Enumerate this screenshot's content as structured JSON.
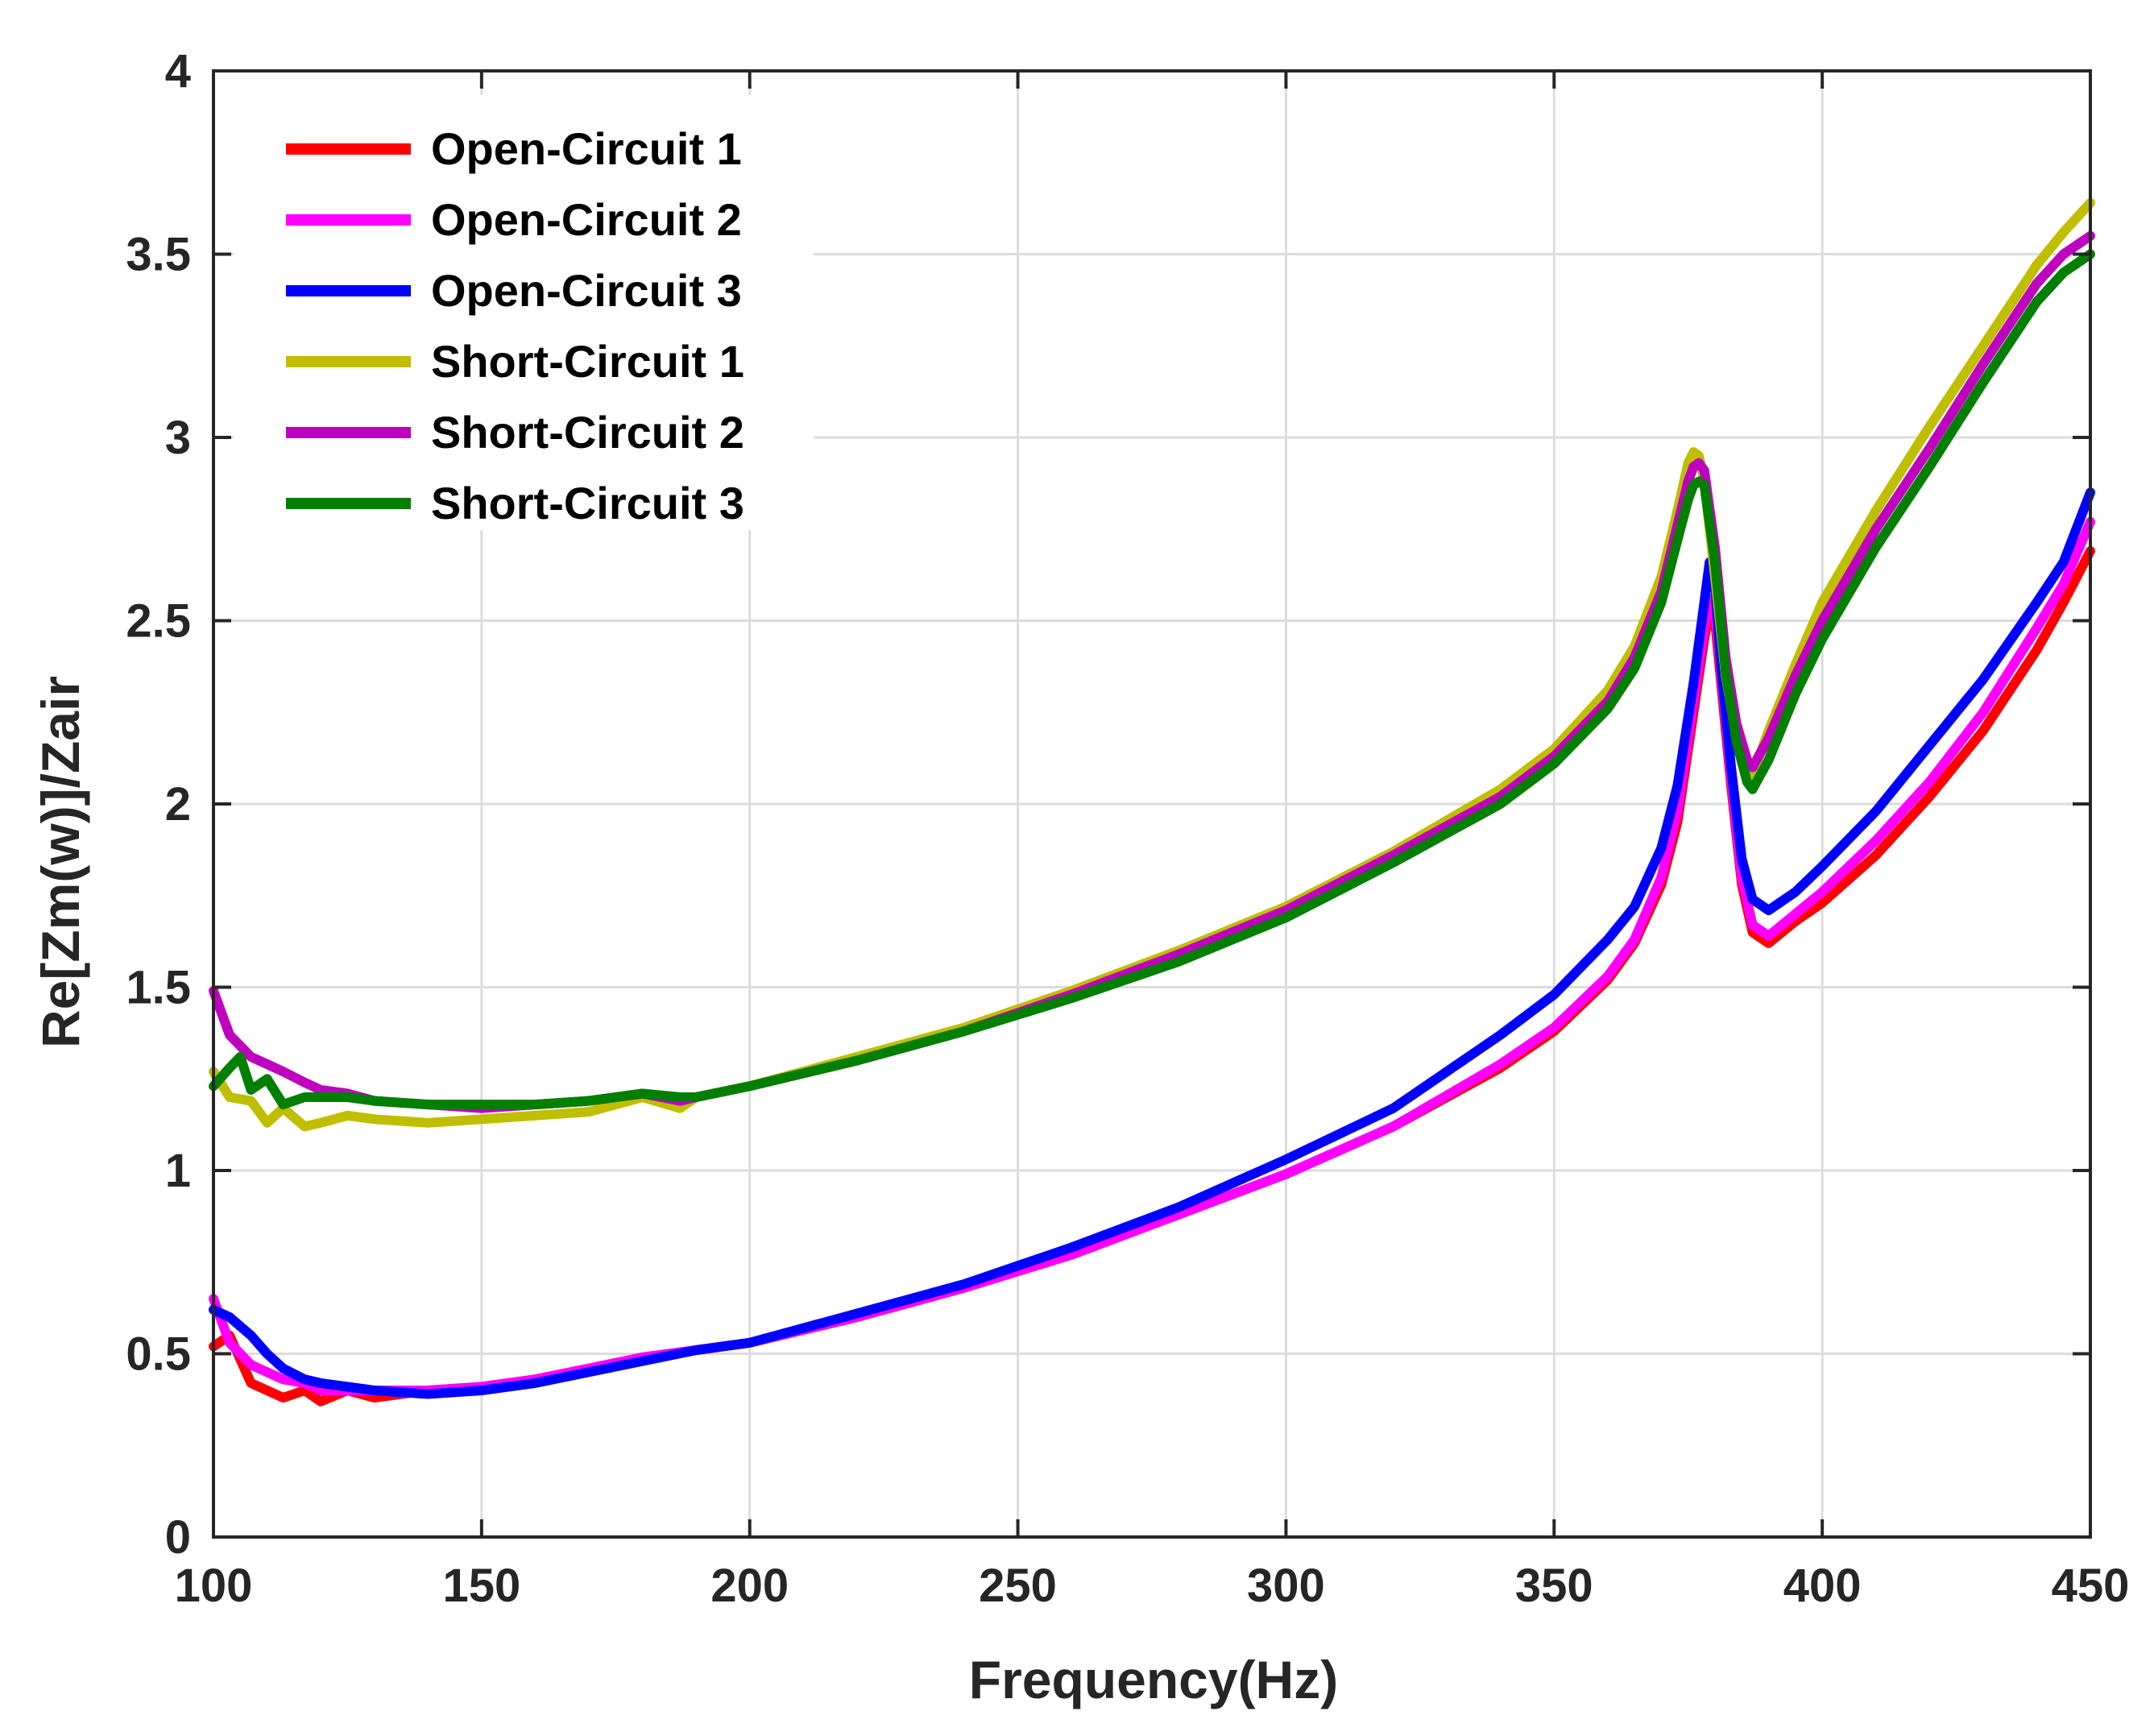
{
  "chart_data": {
    "type": "line",
    "title": "",
    "xlabel": "Frequency(Hz)",
    "ylabel": "Re[Zm(w)]/Zair",
    "xlim": [
      100,
      450
    ],
    "ylim": [
      0,
      4
    ],
    "xticks": [
      100,
      150,
      200,
      250,
      300,
      350,
      400,
      450
    ],
    "xtick_labels": [
      "100",
      "150",
      "200",
      "250",
      "300",
      "350",
      "400",
      "450"
    ],
    "yticks": [
      0,
      0.5,
      1,
      1.5,
      2,
      2.5,
      3,
      3.5,
      4
    ],
    "ytick_labels": [
      "0",
      "0.5",
      "1",
      "1.5",
      "2",
      "2.5",
      "3",
      "3.5",
      "4"
    ],
    "grid": true,
    "legend_position": "top-left",
    "series": [
      {
        "name": "Open-Circuit 1",
        "color": "#ff0000",
        "x": [
          100,
          103,
          107,
          110,
          113,
          117,
          120,
          125,
          130,
          140,
          150,
          160,
          170,
          180,
          190,
          200,
          220,
          240,
          260,
          280,
          300,
          320,
          340,
          350,
          360,
          365,
          370,
          373,
          376,
          378,
          379,
          380,
          381,
          383,
          385,
          387,
          390,
          395,
          400,
          410,
          420,
          430,
          440,
          445,
          450
        ],
        "y": [
          0.52,
          0.55,
          0.42,
          0.4,
          0.38,
          0.4,
          0.37,
          0.4,
          0.38,
          0.4,
          0.41,
          0.43,
          0.46,
          0.49,
          0.51,
          0.53,
          0.6,
          0.68,
          0.78,
          0.88,
          0.99,
          1.12,
          1.28,
          1.38,
          1.52,
          1.62,
          1.78,
          1.95,
          2.25,
          2.45,
          2.53,
          2.5,
          2.35,
          2.05,
          1.78,
          1.65,
          1.62,
          1.68,
          1.73,
          1.86,
          2.02,
          2.2,
          2.42,
          2.55,
          2.69
        ]
      },
      {
        "name": "Open-Circuit 2",
        "color": "#ff00ff",
        "x": [
          100,
          103,
          107,
          110,
          113,
          117,
          120,
          125,
          130,
          140,
          150,
          160,
          170,
          180,
          190,
          200,
          220,
          240,
          260,
          280,
          300,
          320,
          340,
          350,
          360,
          365,
          370,
          373,
          376,
          378,
          379,
          380,
          381,
          383,
          385,
          387,
          390,
          395,
          400,
          410,
          420,
          430,
          440,
          445,
          450
        ],
        "y": [
          0.65,
          0.53,
          0.47,
          0.45,
          0.43,
          0.42,
          0.4,
          0.4,
          0.4,
          0.4,
          0.41,
          0.43,
          0.46,
          0.49,
          0.51,
          0.53,
          0.6,
          0.68,
          0.77,
          0.88,
          0.99,
          1.12,
          1.29,
          1.39,
          1.53,
          1.63,
          1.8,
          1.98,
          2.28,
          2.48,
          2.56,
          2.53,
          2.38,
          2.07,
          1.8,
          1.67,
          1.64,
          1.7,
          1.76,
          1.9,
          2.06,
          2.25,
          2.48,
          2.6,
          2.77
        ]
      },
      {
        "name": "Open-Circuit 3",
        "color": "#0000ff",
        "x": [
          100,
          103,
          107,
          110,
          113,
          117,
          120,
          125,
          130,
          140,
          150,
          160,
          170,
          180,
          190,
          200,
          220,
          240,
          260,
          280,
          300,
          320,
          340,
          350,
          360,
          365,
          370,
          373,
          376,
          378,
          379,
          380,
          381,
          383,
          385,
          387,
          390,
          395,
          400,
          410,
          420,
          430,
          440,
          445,
          450
        ],
        "y": [
          0.62,
          0.6,
          0.55,
          0.5,
          0.46,
          0.43,
          0.42,
          0.41,
          0.4,
          0.39,
          0.4,
          0.42,
          0.45,
          0.48,
          0.51,
          0.53,
          0.61,
          0.69,
          0.79,
          0.9,
          1.03,
          1.17,
          1.37,
          1.48,
          1.63,
          1.72,
          1.88,
          2.05,
          2.33,
          2.55,
          2.66,
          2.6,
          2.4,
          2.1,
          1.85,
          1.74,
          1.71,
          1.76,
          1.83,
          1.98,
          2.16,
          2.34,
          2.55,
          2.66,
          2.85
        ]
      },
      {
        "name": "Short-Circuit 1",
        "color": "#bfbf00",
        "x": [
          100,
          103,
          107,
          110,
          113,
          117,
          120,
          125,
          130,
          140,
          150,
          160,
          170,
          180,
          187,
          190,
          200,
          220,
          240,
          260,
          280,
          300,
          320,
          340,
          350,
          360,
          365,
          370,
          373,
          375,
          376,
          377,
          378,
          380,
          382,
          384,
          386,
          387,
          390,
          395,
          400,
          410,
          420,
          430,
          440,
          445,
          450
        ],
        "y": [
          1.27,
          1.2,
          1.19,
          1.13,
          1.17,
          1.12,
          1.13,
          1.15,
          1.14,
          1.13,
          1.14,
          1.15,
          1.16,
          1.2,
          1.17,
          1.2,
          1.23,
          1.31,
          1.39,
          1.49,
          1.6,
          1.72,
          1.87,
          2.04,
          2.15,
          2.31,
          2.43,
          2.62,
          2.8,
          2.93,
          2.96,
          2.95,
          2.88,
          2.62,
          2.35,
          2.18,
          2.1,
          2.08,
          2.2,
          2.38,
          2.55,
          2.8,
          3.03,
          3.25,
          3.47,
          3.56,
          3.64
        ]
      },
      {
        "name": "Short-Circuit 2",
        "color": "#bf00bf",
        "x": [
          100,
          103,
          107,
          110,
          113,
          117,
          120,
          125,
          130,
          140,
          150,
          160,
          170,
          180,
          187,
          190,
          200,
          220,
          240,
          260,
          280,
          300,
          320,
          340,
          350,
          360,
          365,
          370,
          373,
          375,
          376,
          377,
          378,
          380,
          382,
          384,
          386,
          387,
          390,
          395,
          400,
          410,
          420,
          430,
          440,
          445,
          450
        ],
        "y": [
          1.49,
          1.37,
          1.31,
          1.29,
          1.27,
          1.24,
          1.22,
          1.21,
          1.19,
          1.18,
          1.17,
          1.18,
          1.19,
          1.21,
          1.19,
          1.2,
          1.23,
          1.3,
          1.38,
          1.48,
          1.59,
          1.71,
          1.86,
          2.02,
          2.13,
          2.28,
          2.4,
          2.58,
          2.76,
          2.88,
          2.92,
          2.93,
          2.91,
          2.7,
          2.4,
          2.22,
          2.12,
          2.1,
          2.18,
          2.35,
          2.5,
          2.75,
          2.97,
          3.2,
          3.42,
          3.5,
          3.55
        ]
      },
      {
        "name": "Short-Circuit 3",
        "color": "#007f00",
        "x": [
          100,
          103,
          105,
          107,
          110,
          113,
          117,
          120,
          125,
          130,
          140,
          150,
          160,
          170,
          180,
          187,
          190,
          200,
          220,
          240,
          260,
          280,
          300,
          320,
          340,
          350,
          360,
          365,
          370,
          373,
          375,
          376,
          377,
          378,
          380,
          382,
          384,
          386,
          387,
          390,
          395,
          400,
          410,
          420,
          430,
          440,
          445,
          450
        ],
        "y": [
          1.23,
          1.28,
          1.31,
          1.22,
          1.25,
          1.18,
          1.2,
          1.2,
          1.2,
          1.19,
          1.18,
          1.18,
          1.18,
          1.19,
          1.21,
          1.2,
          1.2,
          1.23,
          1.3,
          1.38,
          1.47,
          1.57,
          1.69,
          1.84,
          2.0,
          2.11,
          2.26,
          2.37,
          2.55,
          2.72,
          2.83,
          2.87,
          2.88,
          2.87,
          2.66,
          2.36,
          2.17,
          2.06,
          2.04,
          2.12,
          2.3,
          2.45,
          2.7,
          2.92,
          3.15,
          3.37,
          3.45,
          3.5
        ]
      }
    ]
  }
}
